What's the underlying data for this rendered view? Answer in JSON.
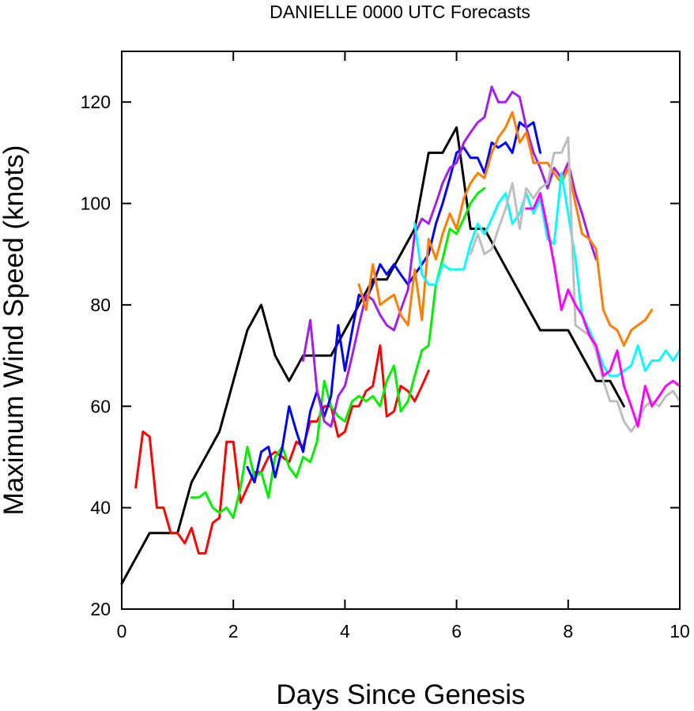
{
  "chart_data": {
    "type": "line",
    "title": "DANIELLE 0000 UTC Forecasts",
    "xlabel": "Days Since Genesis",
    "ylabel": "Maximum Wind Speed (knots)",
    "xlim": [
      0,
      10
    ],
    "ylim": [
      20,
      130
    ],
    "xticks": [
      0,
      2,
      4,
      6,
      8,
      10
    ],
    "yticks": [
      20,
      40,
      60,
      80,
      100,
      120
    ],
    "grid": false,
    "legend": "none",
    "series": [
      {
        "color": "#000000",
        "x": [
          0,
          0.5,
          1,
          1.25,
          1.75,
          2.25,
          2.5,
          2.75,
          3,
          3.25,
          3.75,
          4,
          4.25,
          4.5,
          4.75,
          5,
          5.25,
          5.5,
          5.75,
          6,
          6.25,
          6.5,
          6.75,
          7,
          7.25,
          7.5,
          7.75,
          8,
          8.25,
          8.5,
          8.75,
          9
        ],
        "y": [
          25,
          35,
          35,
          45,
          55,
          75,
          80,
          70,
          65,
          70,
          70,
          75,
          80,
          85,
          85,
          90,
          95,
          110,
          110,
          115,
          95,
          95,
          90,
          85,
          80,
          75,
          75,
          75,
          70,
          65,
          65,
          60
        ]
      },
      {
        "color": "#ff0000",
        "x": [
          0.25,
          0.38,
          0.5,
          0.63,
          0.75,
          0.88,
          1,
          1.13,
          1.25,
          1.38,
          1.5,
          1.63,
          1.75,
          1.88,
          2,
          2.13,
          2.25,
          2.38,
          2.5,
          2.63,
          2.75,
          2.88,
          3,
          3.13,
          3.25,
          3.38,
          3.5,
          3.63,
          3.75,
          3.88,
          4,
          4.13,
          4.25,
          4.38,
          4.5,
          4.63,
          4.75,
          4.88,
          5,
          5.13,
          5.25,
          5.38,
          5.5
        ],
        "y": [
          44,
          55,
          54,
          40,
          40,
          35,
          35,
          33,
          36,
          31,
          31,
          37,
          38,
          53,
          53,
          41,
          44,
          47,
          47,
          50,
          51,
          50,
          49,
          53,
          52,
          57,
          57,
          60,
          60,
          54,
          55,
          60,
          60,
          63,
          64,
          72,
          58,
          59,
          64,
          63,
          61,
          64,
          67
        ]
      },
      {
        "color": "#00ee00",
        "x": [
          1.25,
          1.38,
          1.5,
          1.63,
          1.75,
          1.88,
          2,
          2.13,
          2.25,
          2.38,
          2.5,
          2.63,
          2.75,
          2.88,
          3,
          3.13,
          3.25,
          3.38,
          3.5,
          3.63,
          3.75,
          3.88,
          4,
          4.13,
          4.25,
          4.38,
          4.5,
          4.63,
          4.75,
          4.88,
          5,
          5.13,
          5.25,
          5.38,
          5.5,
          5.63,
          5.75,
          5.88,
          6,
          6.13,
          6.25,
          6.38,
          6.5
        ],
        "y": [
          42,
          42,
          43,
          40,
          39,
          40,
          38,
          44,
          52,
          46,
          47,
          42,
          50,
          52,
          48,
          46,
          50,
          49,
          53,
          65,
          60,
          58,
          57,
          61,
          62,
          61,
          62,
          60,
          65,
          68,
          59,
          61,
          66,
          71,
          72,
          84,
          89,
          95,
          94,
          97,
          100,
          102,
          103
        ]
      },
      {
        "color": "#0000ff",
        "x": [
          2.25,
          2.38,
          2.5,
          2.63,
          2.75,
          2.88,
          3,
          3.13,
          3.25,
          3.38,
          3.5,
          3.63,
          3.75,
          3.88,
          4,
          4.13,
          4.25,
          4.38,
          4.5,
          4.63,
          4.75,
          4.88,
          5,
          5.13,
          5.25,
          5.38,
          5.5,
          5.63,
          5.75,
          5.88,
          6,
          6.13,
          6.25,
          6.38,
          6.5,
          6.63,
          6.75,
          6.88,
          7,
          7.13,
          7.25,
          7.38,
          7.5
        ],
        "y": [
          48,
          45,
          51,
          52,
          46,
          52,
          60,
          55,
          51,
          59,
          63,
          58,
          62,
          76,
          67,
          75,
          82,
          81,
          84,
          88,
          86,
          88,
          86,
          84,
          86,
          88,
          90,
          96,
          100,
          105,
          110,
          111,
          109,
          109,
          106,
          112,
          111,
          112,
          110,
          116,
          115,
          116,
          110
        ]
      },
      {
        "color": "#a020f0",
        "x": [
          3.25,
          3.38,
          3.5,
          3.63,
          3.75,
          3.88,
          4,
          4.13,
          4.25,
          4.38,
          4.5,
          4.63,
          4.75,
          4.88,
          5,
          5.13,
          5.25,
          5.38,
          5.5,
          5.63,
          5.75,
          5.88,
          6,
          6.13,
          6.25,
          6.38,
          6.5,
          6.63,
          6.75,
          6.88,
          7,
          7.13,
          7.25,
          7.38,
          7.5,
          7.63,
          7.75,
          7.88,
          8,
          8.13,
          8.25,
          8.38,
          8.5
        ],
        "y": [
          69,
          77,
          63,
          57,
          56,
          62,
          64,
          70,
          76,
          82,
          81,
          78,
          76,
          75,
          79,
          83,
          94,
          97,
          96,
          100,
          104,
          107,
          108,
          112,
          114,
          116,
          117,
          123,
          120,
          120,
          122,
          121,
          115,
          110,
          107,
          103,
          107,
          105,
          108,
          102,
          98,
          93,
          89
        ]
      },
      {
        "color": "#ff8000",
        "x": [
          4.25,
          4.38,
          4.5,
          4.63,
          4.75,
          4.88,
          5,
          5.13,
          5.25,
          5.38,
          5.5,
          5.63,
          5.75,
          5.88,
          6,
          6.13,
          6.25,
          6.38,
          6.5,
          6.63,
          6.75,
          6.88,
          7,
          7.13,
          7.25,
          7.38,
          7.5,
          7.63,
          7.75,
          7.88,
          8,
          8.13,
          8.25,
          8.38,
          8.5,
          8.63,
          8.75,
          8.88,
          9,
          9.13,
          9.25,
          9.38,
          9.5
        ],
        "y": [
          84,
          79,
          88,
          80,
          81,
          82,
          78,
          76,
          87,
          77,
          93,
          89,
          94,
          98,
          95,
          101,
          104,
          106,
          105,
          110,
          113,
          115,
          118,
          112,
          114,
          108,
          108,
          108,
          106,
          104,
          107,
          100,
          94,
          93,
          91,
          79,
          76,
          75,
          72,
          75,
          76,
          77,
          79
        ]
      },
      {
        "color": "#00ffff",
        "x": [
          5.25,
          5.38,
          5.5,
          5.63,
          5.75,
          5.88,
          6,
          6.13,
          6.25,
          6.38,
          6.5,
          6.63,
          6.75,
          6.88,
          7,
          7.13,
          7.25,
          7.38,
          7.5,
          7.63,
          7.75,
          7.88,
          8,
          8.13,
          8.25,
          8.38,
          8.5,
          8.63,
          8.75,
          8.88,
          9,
          9.13,
          9.25,
          9.38,
          9.5,
          9.63,
          9.75,
          9.88,
          10
        ],
        "y": [
          96,
          86,
          84,
          84,
          88,
          87,
          87,
          87,
          92,
          96,
          94,
          97,
          100,
          102,
          96,
          98,
          102,
          98,
          101,
          93,
          92,
          106,
          98,
          89,
          78,
          75,
          72,
          68,
          66,
          66,
          67,
          68,
          72,
          67,
          69,
          69,
          71,
          69,
          71
        ]
      },
      {
        "color": "#bebebe",
        "x": [
          6.25,
          6.38,
          6.5,
          6.63,
          6.75,
          6.88,
          7,
          7.13,
          7.25,
          7.38,
          7.5,
          7.63,
          7.75,
          7.88,
          8,
          8.13,
          8.25,
          8.38,
          8.5,
          8.63,
          8.75,
          8.88,
          9,
          9.13,
          9.25,
          9.38,
          9.5,
          9.63,
          9.75,
          9.88,
          10
        ],
        "y": [
          90,
          94,
          90,
          91,
          95,
          99,
          104,
          95,
          103,
          101,
          103,
          104,
          110,
          110,
          113,
          76,
          75,
          74,
          71,
          65,
          61,
          61,
          57,
          55,
          57,
          60,
          61,
          60,
          62,
          63,
          61
        ]
      },
      {
        "color": "#ff00ff",
        "x": [
          7.25,
          7.38,
          7.5,
          7.63,
          7.75,
          7.88,
          8,
          8.13,
          8.25,
          8.38,
          8.5,
          8.63,
          8.75,
          8.88,
          9,
          9.13,
          9.25,
          9.38,
          9.5,
          9.63,
          9.75,
          9.88,
          10
        ],
        "y": [
          99,
          99,
          102,
          95,
          88,
          79,
          83,
          80,
          78,
          74,
          72,
          66,
          67,
          71,
          64,
          60,
          56,
          64,
          60,
          62,
          64,
          65,
          64
        ]
      }
    ]
  }
}
